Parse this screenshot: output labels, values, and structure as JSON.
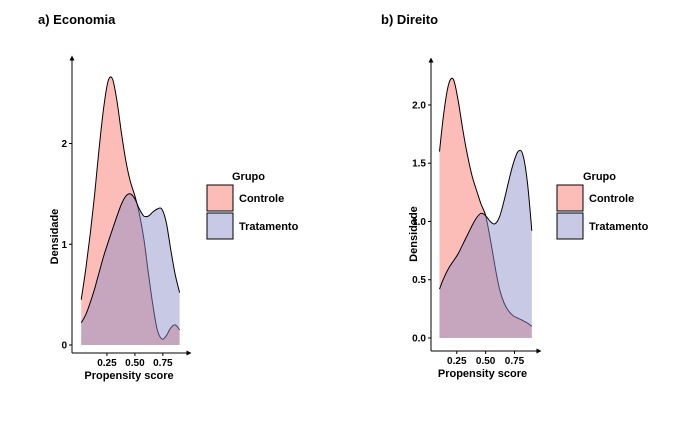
{
  "chart_data": [
    {
      "type": "area",
      "title": "a) Economia",
      "xlabel": "Propensity score",
      "ylabel": "Densidade",
      "xlim": [
        0.0,
        0.93
      ],
      "ylim": [
        0,
        2.75
      ],
      "x_ticks": [
        0.25,
        0.5,
        0.75
      ],
      "x_tick_labels": [
        "0.25",
        "0.50",
        "0.75"
      ],
      "y_ticks": [
        0,
        1,
        2
      ],
      "y_tick_labels": [
        "0",
        "1",
        "2"
      ],
      "grid": false,
      "legend": {
        "title": "Grupo",
        "placement": "right"
      },
      "series": [
        {
          "name": "Controle",
          "color": "#F8766D",
          "x": [
            0.02,
            0.06,
            0.1,
            0.14,
            0.18,
            0.22,
            0.26,
            0.3,
            0.34,
            0.38,
            0.42,
            0.46,
            0.5,
            0.54,
            0.58,
            0.62,
            0.66,
            0.7,
            0.74,
            0.78,
            0.82,
            0.86,
            0.9
          ],
          "values": [
            0.45,
            0.75,
            1.1,
            1.5,
            1.95,
            2.35,
            2.62,
            2.64,
            2.42,
            2.1,
            1.82,
            1.62,
            1.48,
            1.3,
            1.05,
            0.72,
            0.4,
            0.15,
            0.06,
            0.09,
            0.17,
            0.2,
            0.15
          ]
        },
        {
          "name": "Tratamento",
          "color": "#8B8FC6",
          "x": [
            0.02,
            0.06,
            0.1,
            0.14,
            0.18,
            0.22,
            0.26,
            0.3,
            0.34,
            0.38,
            0.42,
            0.46,
            0.5,
            0.54,
            0.58,
            0.62,
            0.66,
            0.7,
            0.74,
            0.78,
            0.82,
            0.86,
            0.9
          ],
          "values": [
            0.22,
            0.3,
            0.42,
            0.56,
            0.72,
            0.88,
            1.02,
            1.15,
            1.28,
            1.4,
            1.48,
            1.5,
            1.45,
            1.35,
            1.28,
            1.28,
            1.32,
            1.35,
            1.35,
            1.22,
            0.95,
            0.7,
            0.52
          ]
        }
      ]
    },
    {
      "type": "area",
      "title": "b) Direito",
      "xlabel": "Propensity score",
      "ylabel": "Densidade",
      "xlim": [
        0.07,
        0.91
      ],
      "ylim": [
        0,
        2.3
      ],
      "x_ticks": [
        0.25,
        0.5,
        0.75
      ],
      "x_tick_labels": [
        "0.25",
        "0.50",
        "0.75"
      ],
      "y_ticks": [
        0,
        0.5,
        1,
        1.5,
        2
      ],
      "y_tick_labels": [
        "0.0",
        "0.5",
        "1.0",
        "1.5",
        "2.0"
      ],
      "grid": false,
      "legend": {
        "title": "Grupo",
        "placement": "right"
      },
      "series": [
        {
          "name": "Controle",
          "color": "#F8766D",
          "x": [
            0.1,
            0.14,
            0.18,
            0.22,
            0.26,
            0.3,
            0.34,
            0.38,
            0.42,
            0.46,
            0.5,
            0.54,
            0.58,
            0.62,
            0.66,
            0.7,
            0.74,
            0.78,
            0.82,
            0.86,
            0.9
          ],
          "values": [
            1.6,
            1.95,
            2.18,
            2.22,
            2.05,
            1.8,
            1.58,
            1.4,
            1.27,
            1.15,
            1.05,
            0.85,
            0.62,
            0.42,
            0.3,
            0.23,
            0.19,
            0.17,
            0.15,
            0.13,
            0.1
          ]
        },
        {
          "name": "Tratamento",
          "color": "#8B8FC6",
          "x": [
            0.1,
            0.14,
            0.18,
            0.22,
            0.26,
            0.3,
            0.34,
            0.38,
            0.42,
            0.46,
            0.5,
            0.54,
            0.58,
            0.62,
            0.66,
            0.7,
            0.74,
            0.78,
            0.82,
            0.86,
            0.9
          ],
          "values": [
            0.42,
            0.52,
            0.6,
            0.66,
            0.72,
            0.8,
            0.88,
            0.96,
            1.03,
            1.07,
            1.05,
            1.0,
            0.98,
            1.04,
            1.18,
            1.35,
            1.5,
            1.6,
            1.58,
            1.35,
            0.92
          ]
        }
      ]
    }
  ]
}
